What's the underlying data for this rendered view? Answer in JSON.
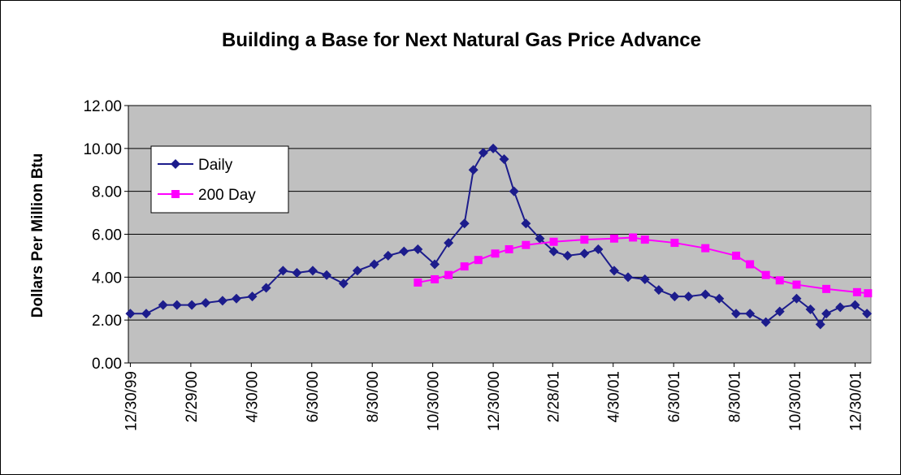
{
  "chart_data": {
    "type": "line",
    "title": "Building a Base for Next Natural Gas Price Advance",
    "y_label": "Dollars Per Million Btu",
    "xlim": [
      "12/28/99",
      "1/15/02"
    ],
    "xticks": [
      "12/30/99",
      "2/29/00",
      "4/30/00",
      "6/30/00",
      "8/30/00",
      "10/30/00",
      "12/30/00",
      "2/28/01",
      "4/30/01",
      "6/30/01",
      "8/30/01",
      "10/30/01",
      "12/30/01"
    ],
    "ylim": [
      0,
      12
    ],
    "yticks": [
      {
        "value": 0,
        "label": "0.00"
      },
      {
        "value": 2,
        "label": "2.00"
      },
      {
        "value": 4,
        "label": "4.00"
      },
      {
        "value": 6,
        "label": "6.00"
      },
      {
        "value": 8,
        "label": "8.00"
      },
      {
        "value": 10,
        "label": "10.00"
      },
      {
        "value": 12,
        "label": "12.00"
      }
    ],
    "grid": true,
    "legend": "upper left",
    "series": [
      {
        "name": "Daily",
        "color": "#1c1c8c",
        "marker": "diamond",
        "x": [
          "12/30/99",
          "1/15/00",
          "2/1/00",
          "2/15/00",
          "3/1/00",
          "3/15/00",
          "4/1/00",
          "4/15/00",
          "5/1/00",
          "5/15/00",
          "6/1/00",
          "6/15/00",
          "7/1/00",
          "7/15/00",
          "8/1/00",
          "8/15/00",
          "9/1/00",
          "9/15/00",
          "10/1/00",
          "10/15/00",
          "11/1/00",
          "11/15/00",
          "12/1/00",
          "12/10/00",
          "12/20/00",
          "12/30/00",
          "1/10/01",
          "1/20/01",
          "2/1/01",
          "2/15/01",
          "3/1/01",
          "3/15/01",
          "4/1/01",
          "4/15/01",
          "5/1/01",
          "5/15/01",
          "6/1/01",
          "6/15/01",
          "7/1/01",
          "7/15/01",
          "8/1/01",
          "8/15/01",
          "9/1/01",
          "9/15/01",
          "10/1/01",
          "10/15/01",
          "11/1/01",
          "11/15/01",
          "11/25/01",
          "12/1/01",
          "12/15/01",
          "12/30/01",
          "1/11/02"
        ],
        "values": [
          2.3,
          2.3,
          2.7,
          2.7,
          2.7,
          2.8,
          2.9,
          3.0,
          3.1,
          3.5,
          4.3,
          4.2,
          4.3,
          4.1,
          3.7,
          4.3,
          4.6,
          5.0,
          5.2,
          5.3,
          4.6,
          5.6,
          6.5,
          9.0,
          9.8,
          10.0,
          9.5,
          8.0,
          6.5,
          5.8,
          5.2,
          5.0,
          5.1,
          5.3,
          4.3,
          4.0,
          3.9,
          3.4,
          3.1,
          3.1,
          3.2,
          3.0,
          2.3,
          2.3,
          1.9,
          2.4,
          3.0,
          2.5,
          1.8,
          2.3,
          2.6,
          2.7,
          2.3
        ]
      },
      {
        "name": "200 Day",
        "color": "#ff00ff",
        "marker": "square",
        "x": [
          "10/15/00",
          "11/1/00",
          "11/15/00",
          "12/1/00",
          "12/15/00",
          "1/1/01",
          "1/15/01",
          "2/1/01",
          "3/1/01",
          "4/1/01",
          "5/1/01",
          "5/20/01",
          "6/1/01",
          "7/1/01",
          "8/1/01",
          "9/1/01",
          "9/15/01",
          "10/1/01",
          "10/15/01",
          "11/1/01",
          "12/1/01",
          "1/1/02",
          "1/12/02"
        ],
        "values": [
          3.75,
          3.9,
          4.1,
          4.5,
          4.8,
          5.1,
          5.3,
          5.5,
          5.65,
          5.75,
          5.8,
          5.85,
          5.75,
          5.6,
          5.35,
          5.0,
          4.6,
          4.1,
          3.85,
          3.65,
          3.45,
          3.3,
          3.25
        ]
      }
    ]
  }
}
